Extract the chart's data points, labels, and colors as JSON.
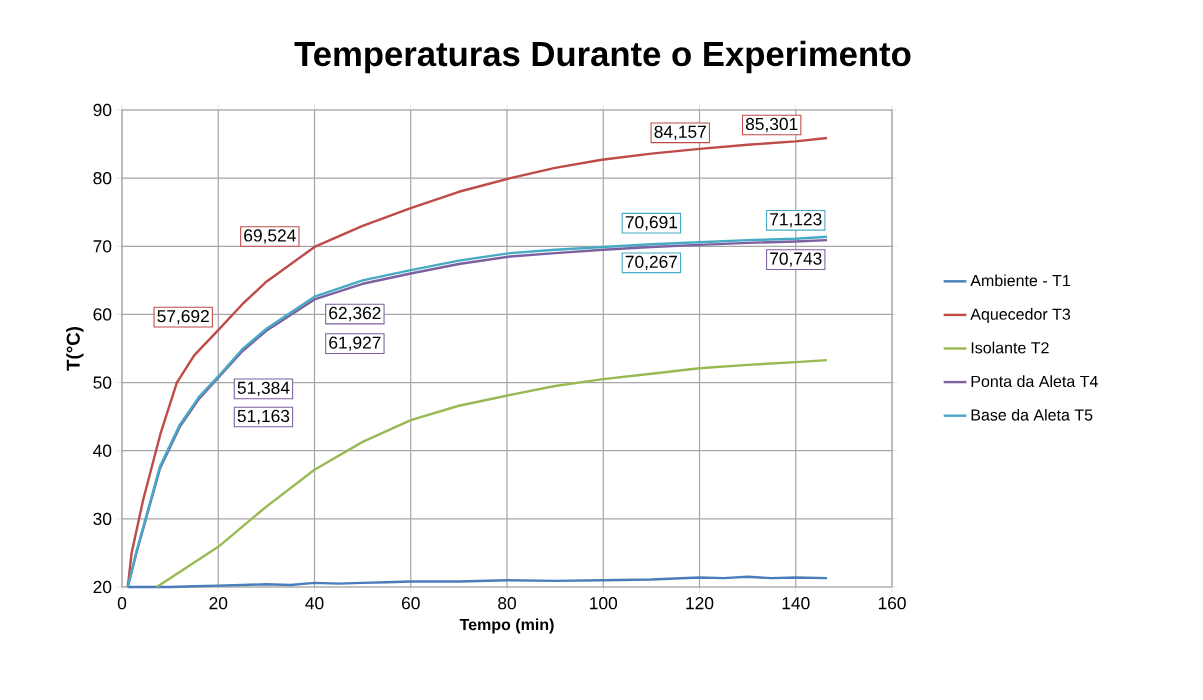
{
  "chart_data": {
    "type": "line",
    "title": "Temperaturas Durante o Experimento",
    "xlabel": "Tempo (min)",
    "ylabel": "T(°C)",
    "xlim": [
      0,
      160
    ],
    "xticks": [
      0,
      20,
      40,
      60,
      80,
      100,
      120,
      140,
      160
    ],
    "ylim": [
      20,
      90
    ],
    "yticks": [
      20,
      30,
      40,
      50,
      60,
      70,
      80,
      90
    ],
    "grid": true,
    "legend": "right",
    "series": [
      {
        "name": "Ambiente - T1",
        "color": "#4a7ebb",
        "x": [
          1.2,
          5,
          10,
          15,
          20,
          25,
          30,
          35,
          40,
          45,
          50,
          55,
          60,
          70,
          80,
          90,
          100,
          110,
          120,
          125,
          130,
          135,
          140,
          146.5
        ],
        "values": [
          20,
          20,
          20,
          20.1,
          20.2,
          20.3,
          20.4,
          20.3,
          20.6,
          20.5,
          20.6,
          20.7,
          20.8,
          20.8,
          21,
          20.9,
          21,
          21.1,
          21.4,
          21.3,
          21.5,
          21.3,
          21.4,
          21.3
        ]
      },
      {
        "name": "Aquecedor T3",
        "color": "#be4b48",
        "x": [
          1.2,
          2,
          4.4,
          8,
          11.4,
          15,
          20,
          25,
          30,
          40,
          50,
          60,
          70,
          80.7,
          90,
          99.7,
          110,
          120,
          130,
          140,
          146.5
        ],
        "values": [
          20,
          25,
          32.8,
          42.5,
          50,
          54,
          57.7,
          61.5,
          64.8,
          69.9,
          73,
          75.6,
          78,
          80,
          81.5,
          82.7,
          83.6,
          84.3,
          84.9,
          85.4,
          85.9
        ]
      },
      {
        "name": "Isolante T2",
        "color": "#98b954",
        "x": [
          7.2,
          10,
          15,
          20,
          30,
          40,
          50,
          60,
          70,
          80.7,
          90,
          100,
          110,
          120,
          130,
          140,
          146.5
        ],
        "values": [
          20,
          21.3,
          23.6,
          25.9,
          31.8,
          37.2,
          41.3,
          44.5,
          46.6,
          48.2,
          49.5,
          50.5,
          51.3,
          52.1,
          52.6,
          53,
          53.3
        ]
      },
      {
        "name": "Ponta da Aleta T4",
        "color": "#7d60a0",
        "x": [
          1.2,
          3,
          7.9,
          12,
          16,
          20,
          25,
          30,
          40,
          50,
          60,
          70,
          80.7,
          90,
          100,
          110,
          120,
          130,
          140,
          146.5
        ],
        "values": [
          20,
          25,
          37.4,
          43.5,
          47.6,
          50.7,
          54.6,
          57.6,
          62.2,
          64.5,
          66,
          67.4,
          68.5,
          69,
          69.5,
          69.9,
          70.2,
          70.5,
          70.7,
          70.9
        ]
      },
      {
        "name": "Base da Aleta T5",
        "color": "#46aac5",
        "x": [
          1.2,
          3,
          7.9,
          12,
          16,
          20,
          25,
          30,
          40,
          50,
          60,
          70,
          80.7,
          90,
          100,
          110,
          120,
          130,
          140,
          146.5
        ],
        "values": [
          20,
          25.2,
          37.7,
          43.8,
          47.9,
          50.9,
          54.9,
          57.9,
          62.6,
          65,
          66.5,
          67.9,
          69,
          69.5,
          69.9,
          70.3,
          70.6,
          70.9,
          71.1,
          71.4
        ]
      }
    ],
    "annotations": [
      {
        "text": "57,692",
        "x": 20,
        "y": 57.692
      },
      {
        "text": "69,524",
        "x": 38,
        "y": 69.524
      },
      {
        "text": "84,157",
        "x": 116,
        "y": 84.157
      },
      {
        "text": "85,301",
        "x": 135,
        "y": 85.301
      },
      {
        "text": "51,384",
        "x": 21,
        "y": 51.384
      },
      {
        "text": "62,362",
        "x": 40,
        "y": 62.362
      },
      {
        "text": "70,691",
        "x": 110,
        "y": 70.691
      },
      {
        "text": "71,123",
        "x": 140,
        "y": 71.123
      },
      {
        "text": "51,163",
        "x": 21,
        "y": 51.163
      },
      {
        "text": "61,927",
        "x": 40,
        "y": 61.927
      },
      {
        "text": "70,267",
        "x": 110,
        "y": 70.267
      },
      {
        "text": "70,743",
        "x": 140,
        "y": 70.743
      }
    ]
  }
}
